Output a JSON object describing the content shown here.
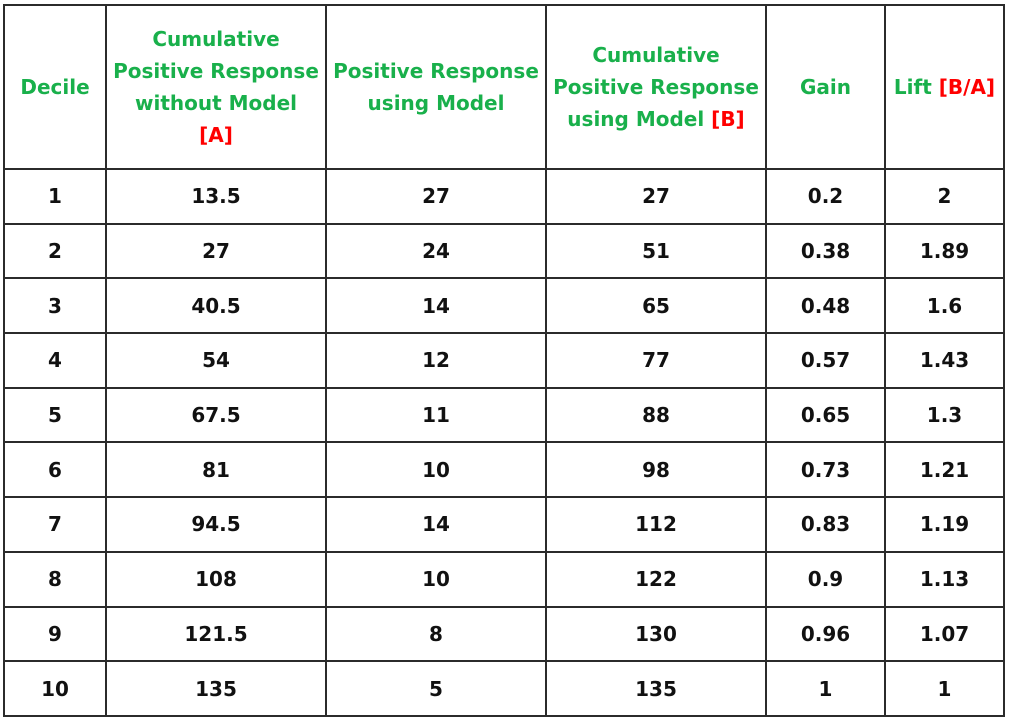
{
  "chart_data": {
    "type": "table",
    "columns": [
      {
        "key": "decile",
        "lines": [
          "Decile"
        ],
        "ref": ""
      },
      {
        "key": "cum_without",
        "lines": [
          "Cumulative",
          "Positive Response",
          "without Model"
        ],
        "ref": "[A]"
      },
      {
        "key": "pos_using",
        "lines": [
          "Positive Response",
          "using Model"
        ],
        "ref": ""
      },
      {
        "key": "cum_using",
        "lines": [
          "Cumulative",
          "Positive Response",
          "using Model"
        ],
        "ref": "[B]"
      },
      {
        "key": "gain",
        "lines": [
          "Gain"
        ],
        "ref": ""
      },
      {
        "key": "lift",
        "lines": [
          "Lift"
        ],
        "ref": "[B/A]"
      }
    ],
    "rows": [
      [
        "1",
        "13.5",
        "27",
        "27",
        "0.2",
        "2"
      ],
      [
        "2",
        "27",
        "24",
        "51",
        "0.38",
        "1.89"
      ],
      [
        "3",
        "40.5",
        "14",
        "65",
        "0.48",
        "1.6"
      ],
      [
        "4",
        "54",
        "12",
        "77",
        "0.57",
        "1.43"
      ],
      [
        "5",
        "67.5",
        "11",
        "88",
        "0.65",
        "1.3"
      ],
      [
        "6",
        "81",
        "10",
        "98",
        "0.73",
        "1.21"
      ],
      [
        "7",
        "94.5",
        "14",
        "112",
        "0.83",
        "1.19"
      ],
      [
        "8",
        "108",
        "10",
        "122",
        "0.9",
        "1.13"
      ],
      [
        "9",
        "121.5",
        "8",
        "130",
        "0.96",
        "1.07"
      ],
      [
        "10",
        "135",
        "5",
        "135",
        "1",
        "1"
      ]
    ]
  },
  "colors": {
    "header_text": "#19b04b",
    "reference_text": "#ff0000",
    "body_text": "#111111",
    "border": "#2b2b2b"
  }
}
